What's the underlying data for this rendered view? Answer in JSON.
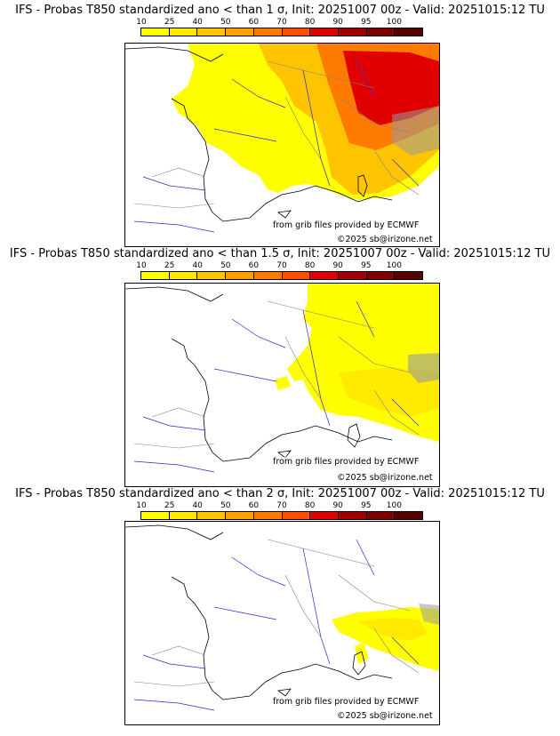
{
  "colors": [
    "#ffff00",
    "#ffea00",
    "#ffc400",
    "#ffa000",
    "#ff7b00",
    "#ff4e00",
    "#e00000",
    "#a00000",
    "#800000",
    "#560000"
  ],
  "scale_ticks": [
    "10",
    "25",
    "40",
    "50",
    "60",
    "70",
    "80",
    "90",
    "95",
    "100"
  ],
  "credits": {
    "source": "from grib files provided by ECMWF",
    "copyright": "©2025 sb@irizone.net"
  },
  "panels": [
    {
      "title": "IFS - Probas T850  standardized ano < than 1 σ, Init: 20251007 00z - Valid: 20251015:12 TU"
    },
    {
      "title": "IFS - Probas T850  standardized ano < than 1.5 σ, Init: 20251007 00z - Valid: 20251015:12 TU"
    },
    {
      "title": "IFS - Probas T850  standardized ano < than 2 σ, Init: 20251007 00z - Valid: 20251015:12 TU"
    }
  ]
}
